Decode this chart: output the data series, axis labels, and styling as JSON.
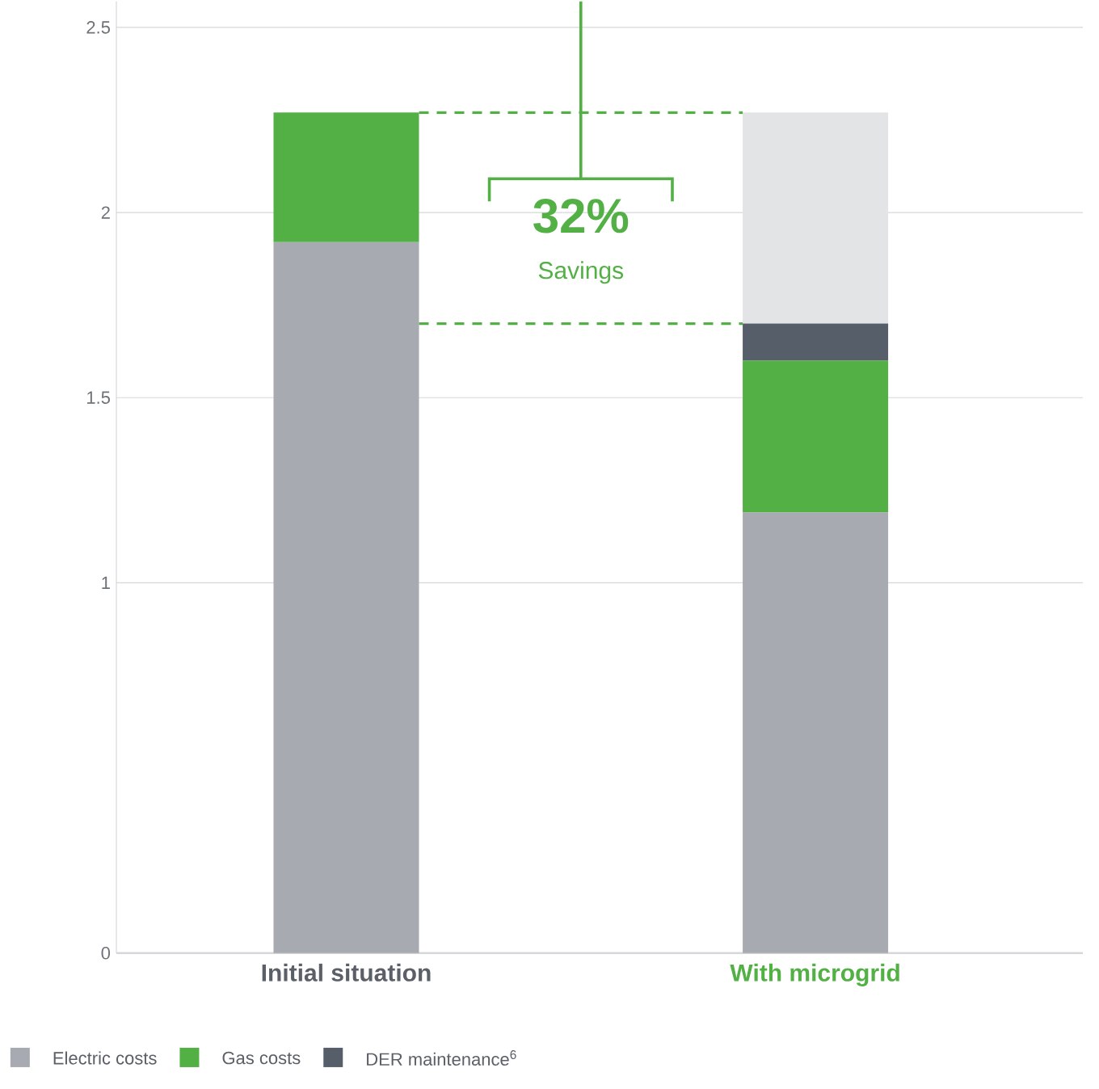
{
  "chart_data": {
    "type": "bar",
    "stacked": true,
    "categories": [
      "Initial situation",
      "With microgrid"
    ],
    "series": [
      {
        "name": "Electric costs",
        "color": "#a7aab1",
        "values": [
          1.92,
          1.19
        ]
      },
      {
        "name": "Gas costs",
        "color": "#52b044",
        "values": [
          0.35,
          0.41
        ]
      },
      {
        "name": "DER maintenance$^{6}$",
        "color": "#565f69",
        "values": [
          null,
          0.1
        ]
      },
      {
        "color": "#e3e4e6",
        "values": [
          null,
          0.57
        ]
      }
    ],
    "ylim": [
      0,
      2.57
    ],
    "yticks": [
      0,
      1,
      1.5,
      2,
      2.5
    ],
    "grid": "y",
    "legend": "bottom left",
    "annotations": [
      "32%",
      "Savings"
    ]
  }
}
